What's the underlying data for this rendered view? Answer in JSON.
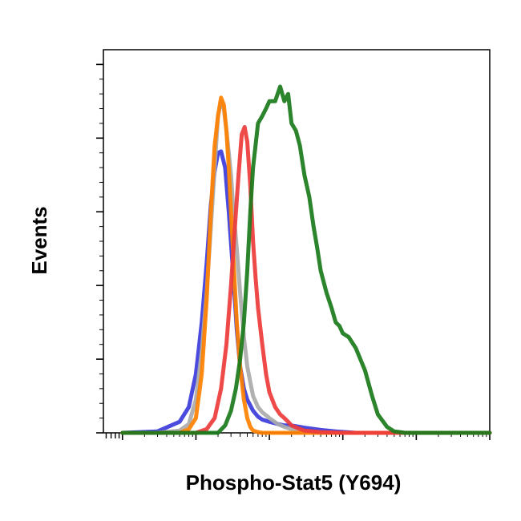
{
  "chart_data": {
    "type": "line",
    "title": "",
    "xlabel": "Phospho-Stat5 (Y694)",
    "ylabel": "Events",
    "x_scale": "log",
    "xlim": [
      0.55,
      100000
    ],
    "ylim": [
      0,
      5.2
    ],
    "grid": false,
    "legend": "none",
    "series": [
      {
        "color": "#3b3bdc",
        "x": [
          1,
          3,
          6,
          8,
          10,
          12,
          14,
          16,
          18,
          20,
          22,
          25,
          28,
          32,
          36,
          40,
          45,
          50,
          60,
          70,
          80,
          100,
          130,
          160,
          200,
          300,
          500,
          800,
          1500,
          3000,
          100000
        ],
        "y": [
          0,
          0.02,
          0.15,
          0.35,
          0.8,
          1.5,
          2.3,
          3.1,
          3.55,
          3.8,
          3.82,
          3.6,
          3.0,
          2.2,
          1.4,
          0.9,
          0.6,
          0.45,
          0.3,
          0.22,
          0.18,
          0.15,
          0.12,
          0.1,
          0.1,
          0.07,
          0.04,
          0.02,
          0,
          0,
          0
        ]
      },
      {
        "color": "#aaaaaa",
        "x": [
          1,
          3,
          6,
          8,
          10,
          12,
          14,
          16,
          18,
          20,
          22,
          24,
          26,
          28,
          30,
          32,
          36,
          40,
          45,
          50,
          60,
          70,
          80,
          100,
          130,
          160,
          200,
          300,
          500,
          1000,
          100000
        ],
        "y": [
          0,
          0,
          0.03,
          0.12,
          0.45,
          1.1,
          1.9,
          2.8,
          3.6,
          4.3,
          4.5,
          4.4,
          4.1,
          3.8,
          3.5,
          3.1,
          2.5,
          1.9,
          1.3,
          0.9,
          0.5,
          0.35,
          0.28,
          0.2,
          0.12,
          0.08,
          0.05,
          0.02,
          0,
          0,
          0
        ]
      },
      {
        "color": "#ff8000",
        "x": [
          1,
          6,
          8,
          10,
          12,
          14,
          16,
          18,
          20,
          22,
          24,
          26,
          28,
          30,
          33,
          36,
          40,
          45,
          50,
          55,
          60,
          70,
          80,
          100,
          200,
          1000,
          100000
        ],
        "y": [
          0,
          0,
          0.05,
          0.2,
          0.8,
          1.8,
          3.0,
          3.9,
          4.3,
          4.55,
          4.45,
          4.1,
          3.6,
          3.0,
          2.2,
          1.5,
          0.9,
          0.45,
          0.2,
          0.08,
          0.03,
          0.01,
          0,
          0,
          0,
          0,
          0
        ]
      },
      {
        "color": "#ee3b3b",
        "x": [
          1,
          10,
          14,
          18,
          22,
          26,
          30,
          34,
          38,
          42,
          46,
          50,
          55,
          60,
          65,
          70,
          80,
          90,
          100,
          120,
          140,
          160,
          180,
          200,
          250,
          300,
          500,
          1000,
          100000
        ],
        "y": [
          0,
          0,
          0.05,
          0.2,
          0.6,
          1.2,
          2.0,
          2.8,
          3.5,
          4.05,
          4.15,
          3.95,
          3.35,
          2.6,
          2.1,
          1.7,
          1.2,
          0.8,
          0.55,
          0.35,
          0.25,
          0.2,
          0.15,
          0.1,
          0.06,
          0.03,
          0.01,
          0,
          0
        ]
      },
      {
        "color": "#1a7a1a",
        "x": [
          1,
          20,
          25,
          30,
          35,
          40,
          45,
          50,
          55,
          60,
          70,
          80,
          90,
          100,
          120,
          140,
          160,
          180,
          200,
          230,
          260,
          300,
          350,
          400,
          450,
          500,
          600,
          700,
          800,
          900,
          1000,
          1200,
          1500,
          2000,
          2500,
          3000,
          4000,
          5000,
          6000,
          7000,
          8000,
          10000,
          100000
        ],
        "y": [
          0,
          0,
          0.1,
          0.3,
          0.6,
          1.0,
          1.5,
          2.2,
          3.0,
          3.6,
          4.2,
          4.3,
          4.4,
          4.5,
          4.5,
          4.7,
          4.5,
          4.6,
          4.2,
          4.1,
          3.9,
          3.5,
          3.2,
          2.8,
          2.5,
          2.2,
          1.9,
          1.7,
          1.5,
          1.45,
          1.35,
          1.3,
          1.15,
          0.85,
          0.5,
          0.25,
          0.08,
          0.02,
          0.01,
          0,
          0,
          0,
          0
        ]
      }
    ]
  }
}
